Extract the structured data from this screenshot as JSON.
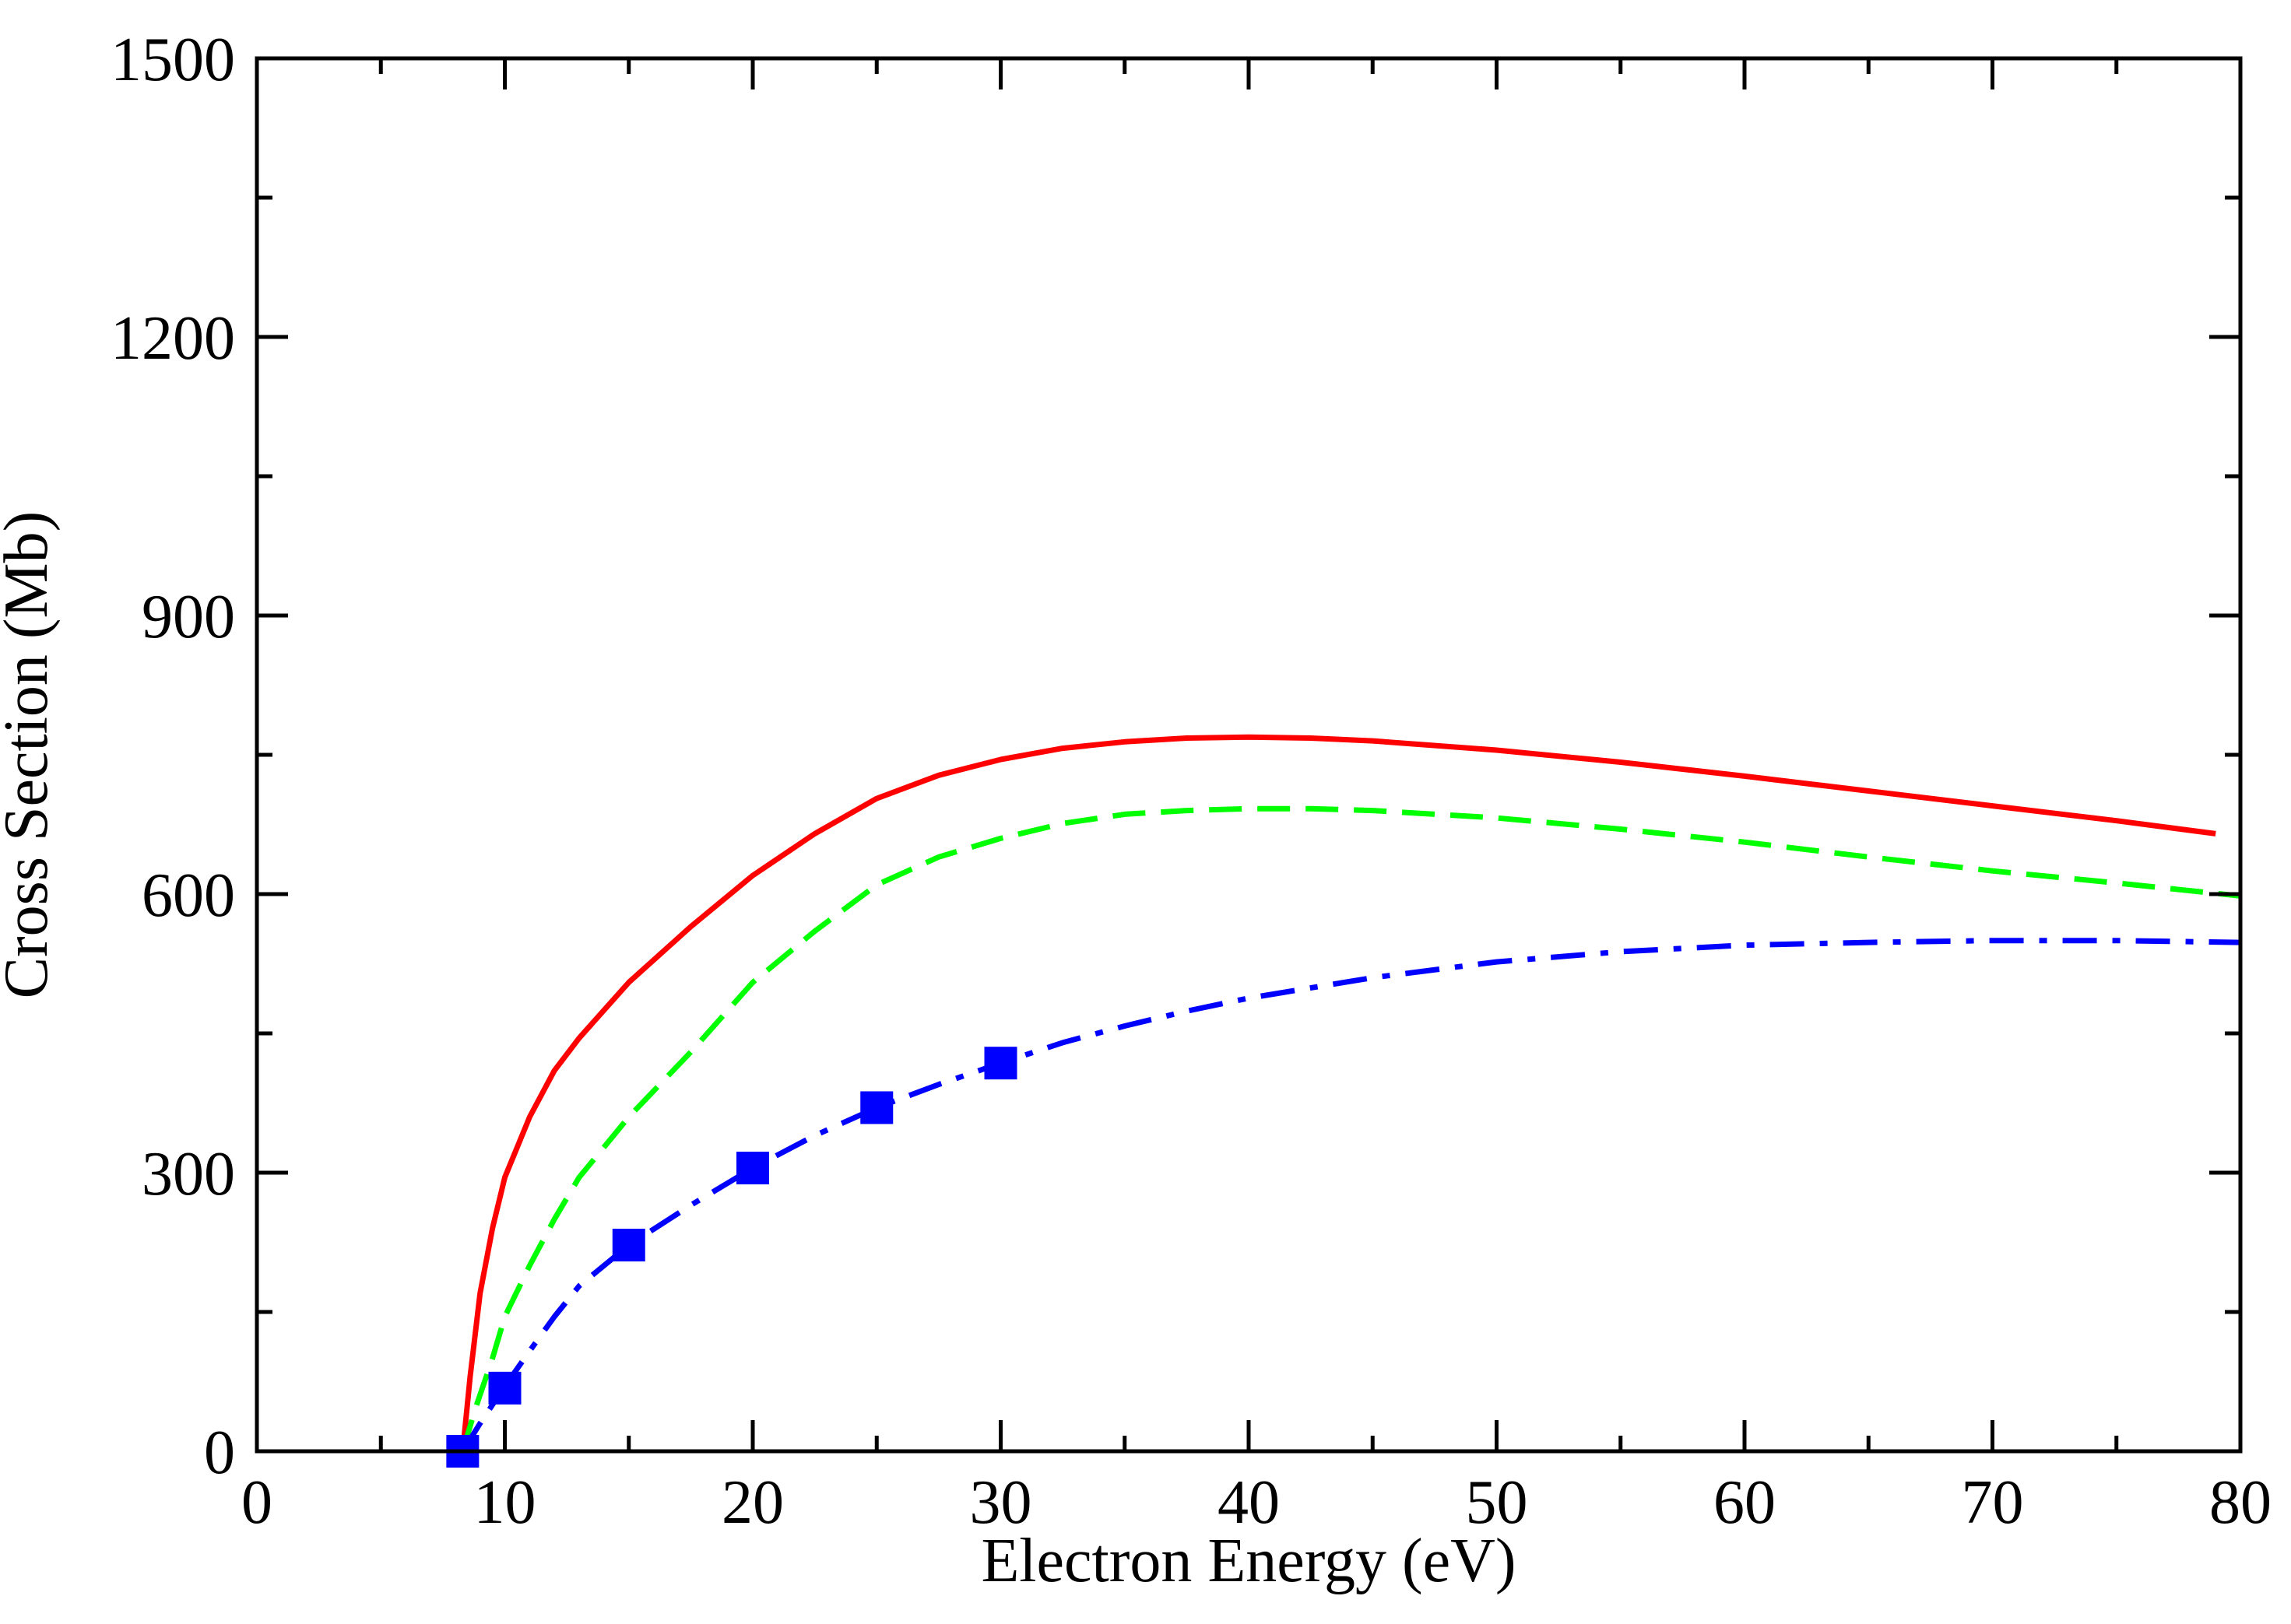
{
  "chart_data": {
    "type": "line",
    "title": "",
    "xlabel": "Electron Energy (eV)",
    "ylabel": "Cross Section (Mb)",
    "xlim": [
      0,
      80
    ],
    "ylim": [
      0,
      1500
    ],
    "x_major_ticks": [
      0,
      10,
      20,
      30,
      40,
      50,
      60,
      70,
      80
    ],
    "x_minor_step": 5,
    "y_major_ticks": [
      0,
      300,
      600,
      900,
      1200,
      1500
    ],
    "y_minor_step": 150,
    "grid": false,
    "legend": "none",
    "series": [
      {
        "name": "solid red curve",
        "style": "solid",
        "color": "#ff0000",
        "x": [
          8.3,
          8.6,
          9.0,
          9.5,
          10.0,
          11.0,
          12.0,
          13.0,
          15.0,
          17.5,
          20.0,
          22.5,
          25.0,
          27.5,
          30.0,
          32.5,
          35.0,
          37.5,
          40.0,
          42.5,
          45.0,
          50.0,
          55.0,
          60.0,
          65.0,
          70.0,
          75.0,
          79.0
        ],
        "values": [
          0,
          80,
          170,
          240,
          295,
          360,
          410,
          445,
          505,
          565,
          620,
          665,
          703,
          728,
          745,
          757,
          764,
          768,
          769,
          768,
          765,
          755,
          742,
          727,
          711,
          695,
          679,
          665
        ]
      },
      {
        "name": "dashed green curve",
        "style": "dashed",
        "color": "#00ff00",
        "x": [
          8.3,
          8.8,
          9.5,
          10.0,
          11.0,
          12.0,
          13.0,
          15.0,
          17.5,
          20.0,
          22.5,
          25.0,
          27.5,
          30.0,
          32.5,
          35.0,
          37.5,
          40.0,
          42.5,
          45.0,
          50.0,
          55.0,
          60.0,
          65.0,
          70.0,
          75.0,
          80.0
        ],
        "values": [
          0,
          45,
          100,
          145,
          200,
          250,
          295,
          360,
          430,
          505,
          560,
          610,
          640,
          660,
          676,
          686,
          690,
          692,
          692,
          690,
          682,
          670,
          656,
          640,
          625,
          612,
          598
        ]
      },
      {
        "name": "dash-dot blue curve",
        "style": "dash-dot",
        "color": "#0000ff",
        "x": [
          8.3,
          9.0,
          10.0,
          11.0,
          12.0,
          13.0,
          15.0,
          17.5,
          20.0,
          22.5,
          25.0,
          27.5,
          30.0,
          32.5,
          35.0,
          37.5,
          40.0,
          45.0,
          50.0,
          55.0,
          60.0,
          65.0,
          70.0,
          75.0,
          80.0
        ],
        "values": [
          0,
          30,
          70,
          108,
          145,
          178,
          222,
          265,
          305,
          340,
          370,
          395,
          418,
          440,
          458,
          474,
          488,
          510,
          527,
          538,
          545,
          548,
          550,
          550,
          548
        ]
      },
      {
        "name": "blue square markers",
        "style": "markers",
        "marker": "square",
        "color": "#0000ff",
        "x": [
          8.3,
          10,
          15,
          20,
          25,
          30
        ],
        "values": [
          0,
          68,
          222,
          305,
          370,
          418
        ]
      }
    ]
  }
}
